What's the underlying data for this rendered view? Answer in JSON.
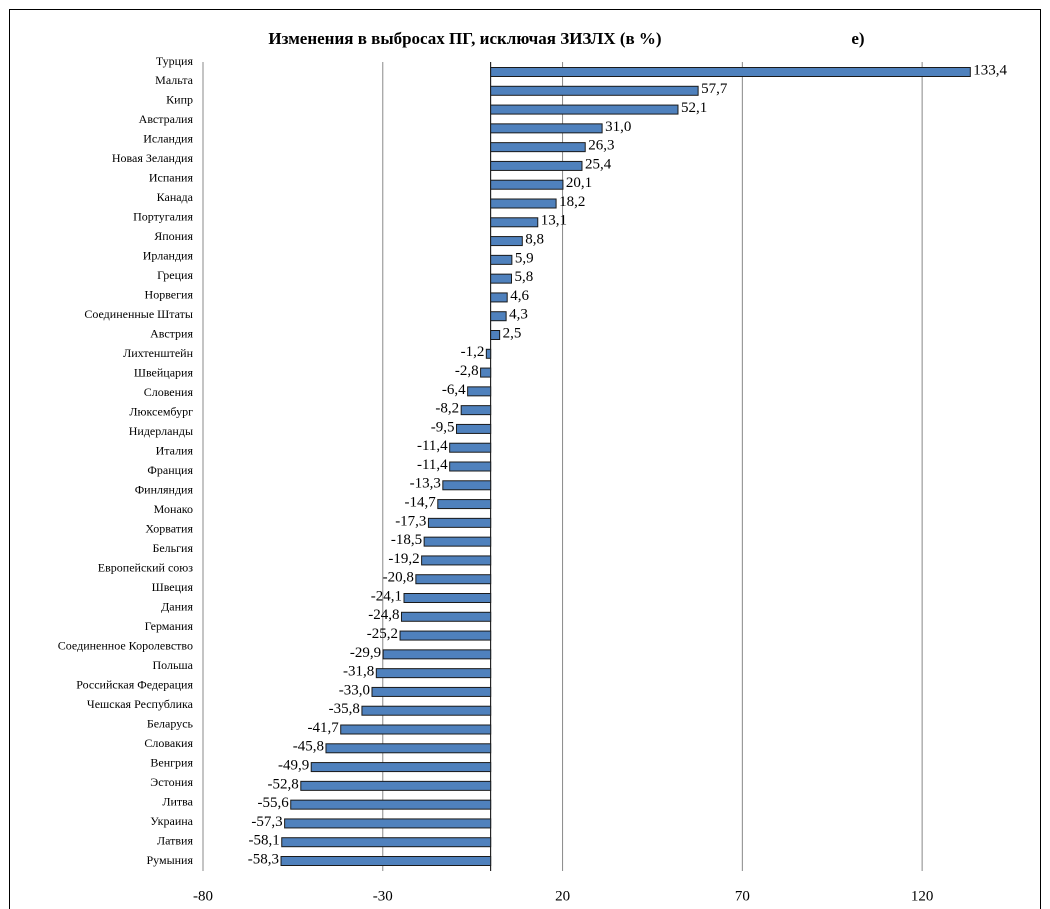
{
  "chart_data": {
    "type": "bar",
    "orientation": "horizontal",
    "title": "Изменения в выбросах ПГ, исключая ЗИЗЛХ (в %)",
    "panel_label": "е)",
    "categories": [
      "Турция",
      "Мальта",
      "Кипр",
      "Австралия",
      "Исландия",
      "Новая Зеландия",
      "Испания",
      "Канада",
      "Португалия",
      "Япония",
      "Ирландия",
      "Греция",
      "Норвегия",
      "Соединенные Штаты",
      "Австрия",
      "Лихтенштейн",
      "Швейцария",
      "Словения",
      "Люксембург",
      "Нидерланды",
      "Италия",
      "Франция",
      "Финляндия",
      "Монако",
      "Хорватия",
      "Бельгия",
      "Европейский союз",
      "Швеция",
      "Дания",
      "Германия",
      "Соединенное Королевство",
      "Польша",
      "Российская Федерация",
      "Чешская Республика",
      "Беларусь",
      "Словакия",
      "Венгрия",
      "Эстония",
      "Литва",
      "Украина",
      "Латвия",
      "Румыния",
      null
    ],
    "values": [
      133.4,
      57.7,
      52.1,
      31.0,
      26.3,
      25.4,
      20.1,
      18.2,
      13.1,
      8.8,
      5.9,
      5.8,
      4.6,
      4.3,
      2.5,
      -1.2,
      -2.8,
      -6.4,
      -8.2,
      -9.5,
      -11.4,
      -11.4,
      -13.3,
      -14.7,
      -17.3,
      -18.5,
      -19.2,
      -20.8,
      -24.1,
      -24.8,
      -25.2,
      -29.9,
      -31.8,
      -33.0,
      -35.8,
      -41.7,
      -45.8,
      -49.9,
      -52.8,
      -55.6,
      -57.3,
      -58.1,
      -58.3
    ],
    "value_labels": [
      "133,4",
      "57,7",
      "52,1",
      "31,0",
      "26,3",
      "25,4",
      "20,1",
      "18,2",
      "13,1",
      "8,8",
      "5,9",
      "5,8",
      "4,6",
      "4,3",
      "2,5",
      "-1,2",
      "-2,8",
      "-6,4",
      "-8,2",
      "-9,5",
      "-11,4",
      "-11,4",
      "-13,3",
      "-14,7",
      "-17,3",
      "-18,5",
      "-19,2",
      "-20,8",
      "-24,1",
      "-24,8",
      "-25,2",
      "-29,9",
      "-31,8",
      "-33,0",
      "-35,8",
      "-41,7",
      "-45,8",
      "-49,9",
      "-52,8",
      "-55,6",
      "-57,3",
      "-58,1",
      "-58,3"
    ],
    "color": "#4f81bd",
    "xlim": [
      -80,
      150
    ],
    "xticks": [
      -80,
      -30,
      20,
      70,
      120
    ],
    "grid": true
  }
}
